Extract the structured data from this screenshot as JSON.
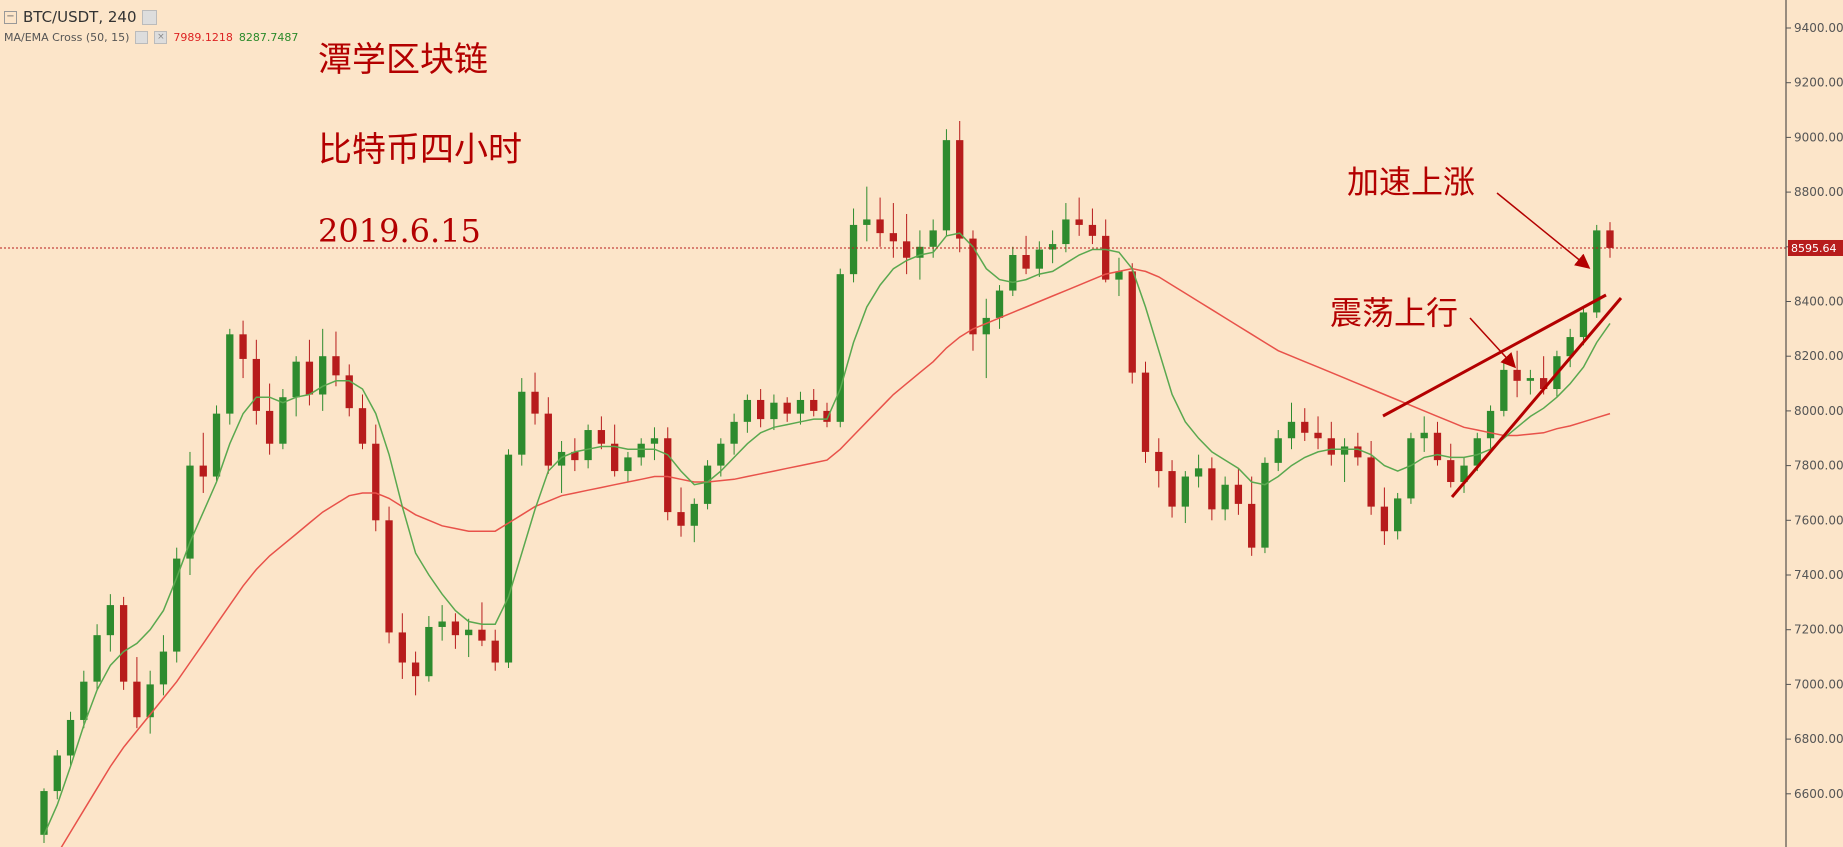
{
  "header": {
    "symbol": "BTC/USDT, 240",
    "indicator_name": "MA/EMA Cross (50, 15)",
    "indicator_value_1": "7989.1218",
    "indicator_value_2": "8287.7487"
  },
  "annotations": {
    "brand": "潭学区块链",
    "subtitle": "比特币四小时",
    "date": "2019.6.15",
    "label_accel": "加速上涨",
    "label_oscillate": "震荡上行"
  },
  "price_tag": "8595.64",
  "colors": {
    "background": "#fce5c9",
    "up": "#2e8b2e",
    "down": "#b71c1c",
    "ma_fast": "#5aa84f",
    "ma_slow": "#e8524a",
    "annotation": "#b30000"
  },
  "chart_data": {
    "type": "candlestick",
    "y_axis": {
      "ylim": [
        6400,
        9500
      ],
      "ticks": [
        "9400.00",
        "9200.00",
        "9000.00",
        "8800.00",
        "8600.00",
        "8400.00",
        "8200.00",
        "8000.00",
        "7800.00",
        "7600.00",
        "7400.00",
        "7200.00",
        "7000.00",
        "6800.00",
        "6600.00"
      ]
    },
    "last_price": 8595.64,
    "candles": [
      [
        6450,
        6620,
        6420,
        6610
      ],
      [
        6610,
        6760,
        6580,
        6740
      ],
      [
        6740,
        6900,
        6700,
        6870
      ],
      [
        6870,
        7050,
        6840,
        7010
      ],
      [
        7010,
        7220,
        6980,
        7180
      ],
      [
        7180,
        7330,
        7120,
        7290
      ],
      [
        7290,
        7320,
        6980,
        7010
      ],
      [
        7010,
        7100,
        6840,
        6880
      ],
      [
        6880,
        7050,
        6820,
        7000
      ],
      [
        7000,
        7180,
        6960,
        7120
      ],
      [
        7120,
        7500,
        7080,
        7460
      ],
      [
        7460,
        7850,
        7400,
        7800
      ],
      [
        7800,
        7920,
        7700,
        7760
      ],
      [
        7760,
        8020,
        7740,
        7990
      ],
      [
        7990,
        8300,
        7950,
        8280
      ],
      [
        8280,
        8330,
        8120,
        8190
      ],
      [
        8190,
        8260,
        7950,
        8000
      ],
      [
        8000,
        8100,
        7840,
        7880
      ],
      [
        7880,
        8080,
        7860,
        8050
      ],
      [
        8050,
        8200,
        7980,
        8180
      ],
      [
        8180,
        8260,
        8020,
        8060
      ],
      [
        8060,
        8300,
        8000,
        8200
      ],
      [
        8200,
        8290,
        8090,
        8130
      ],
      [
        8130,
        8170,
        7980,
        8010
      ],
      [
        8010,
        8060,
        7860,
        7880
      ],
      [
        7880,
        7950,
        7560,
        7600
      ],
      [
        7600,
        7650,
        7150,
        7190
      ],
      [
        7190,
        7260,
        7020,
        7080
      ],
      [
        7080,
        7120,
        6960,
        7030
      ],
      [
        7030,
        7250,
        7010,
        7210
      ],
      [
        7210,
        7290,
        7160,
        7230
      ],
      [
        7230,
        7260,
        7130,
        7180
      ],
      [
        7180,
        7240,
        7100,
        7200
      ],
      [
        7200,
        7300,
        7140,
        7160
      ],
      [
        7160,
        7200,
        7050,
        7080
      ],
      [
        7080,
        7860,
        7060,
        7840
      ],
      [
        7840,
        8120,
        7800,
        8070
      ],
      [
        8070,
        8140,
        7950,
        7990
      ],
      [
        7990,
        8050,
        7770,
        7800
      ],
      [
        7800,
        7890,
        7700,
        7850
      ],
      [
        7850,
        7900,
        7780,
        7820
      ],
      [
        7820,
        7950,
        7790,
        7930
      ],
      [
        7930,
        7980,
        7860,
        7880
      ],
      [
        7880,
        7950,
        7760,
        7780
      ],
      [
        7780,
        7850,
        7740,
        7830
      ],
      [
        7830,
        7900,
        7800,
        7880
      ],
      [
        7880,
        7940,
        7820,
        7900
      ],
      [
        7900,
        7940,
        7600,
        7630
      ],
      [
        7630,
        7720,
        7540,
        7580
      ],
      [
        7580,
        7680,
        7520,
        7660
      ],
      [
        7660,
        7820,
        7640,
        7800
      ],
      [
        7800,
        7900,
        7760,
        7880
      ],
      [
        7880,
        7990,
        7840,
        7960
      ],
      [
        7960,
        8060,
        7920,
        8040
      ],
      [
        8040,
        8080,
        7940,
        7970
      ],
      [
        7970,
        8060,
        7930,
        8030
      ],
      [
        8030,
        8050,
        7960,
        7990
      ],
      [
        7990,
        8070,
        7950,
        8040
      ],
      [
        8040,
        8080,
        7980,
        8000
      ],
      [
        8000,
        8030,
        7940,
        7960
      ],
      [
        7960,
        8520,
        7940,
        8500
      ],
      [
        8500,
        8740,
        8470,
        8680
      ],
      [
        8680,
        8820,
        8620,
        8700
      ],
      [
        8700,
        8780,
        8600,
        8650
      ],
      [
        8650,
        8760,
        8560,
        8620
      ],
      [
        8620,
        8720,
        8500,
        8560
      ],
      [
        8560,
        8660,
        8480,
        8600
      ],
      [
        8600,
        8700,
        8560,
        8660
      ],
      [
        8660,
        9030,
        8640,
        8990
      ],
      [
        8990,
        9060,
        8580,
        8630
      ],
      [
        8630,
        8660,
        8220,
        8280
      ],
      [
        8280,
        8410,
        8120,
        8340
      ],
      [
        8340,
        8460,
        8300,
        8440
      ],
      [
        8440,
        8600,
        8420,
        8570
      ],
      [
        8570,
        8640,
        8500,
        8520
      ],
      [
        8520,
        8620,
        8490,
        8590
      ],
      [
        8590,
        8660,
        8540,
        8610
      ],
      [
        8610,
        8760,
        8580,
        8700
      ],
      [
        8700,
        8780,
        8640,
        8680
      ],
      [
        8680,
        8740,
        8610,
        8640
      ],
      [
        8640,
        8700,
        8470,
        8480
      ],
      [
        8480,
        8560,
        8420,
        8510
      ],
      [
        8510,
        8540,
        8100,
        8140
      ],
      [
        8140,
        8180,
        7810,
        7850
      ],
      [
        7850,
        7900,
        7720,
        7780
      ],
      [
        7780,
        7820,
        7610,
        7650
      ],
      [
        7650,
        7780,
        7590,
        7760
      ],
      [
        7760,
        7840,
        7720,
        7790
      ],
      [
        7790,
        7830,
        7600,
        7640
      ],
      [
        7640,
        7760,
        7600,
        7730
      ],
      [
        7730,
        7790,
        7620,
        7660
      ],
      [
        7660,
        7760,
        7470,
        7500
      ],
      [
        7500,
        7830,
        7480,
        7810
      ],
      [
        7810,
        7930,
        7780,
        7900
      ],
      [
        7900,
        8030,
        7860,
        7960
      ],
      [
        7960,
        8010,
        7890,
        7920
      ],
      [
        7920,
        7980,
        7860,
        7900
      ],
      [
        7900,
        7960,
        7800,
        7840
      ],
      [
        7840,
        7900,
        7740,
        7870
      ],
      [
        7870,
        7920,
        7800,
        7830
      ],
      [
        7830,
        7890,
        7620,
        7650
      ],
      [
        7650,
        7720,
        7510,
        7560
      ],
      [
        7560,
        7700,
        7530,
        7680
      ],
      [
        7680,
        7920,
        7660,
        7900
      ],
      [
        7900,
        7980,
        7850,
        7920
      ],
      [
        7920,
        7960,
        7800,
        7820
      ],
      [
        7820,
        7880,
        7720,
        7740
      ],
      [
        7740,
        7830,
        7700,
        7800
      ],
      [
        7800,
        7920,
        7780,
        7900
      ],
      [
        7900,
        8020,
        7860,
        8000
      ],
      [
        8000,
        8180,
        7980,
        8150
      ],
      [
        8150,
        8220,
        8050,
        8110
      ],
      [
        8110,
        8150,
        8060,
        8120
      ],
      [
        8120,
        8200,
        8060,
        8080
      ],
      [
        8080,
        8220,
        8050,
        8200
      ],
      [
        8200,
        8300,
        8160,
        8270
      ],
      [
        8270,
        8380,
        8240,
        8360
      ],
      [
        8360,
        8680,
        8340,
        8660
      ],
      [
        8660,
        8690,
        8560,
        8596
      ]
    ],
    "ma_fast_values": [
      6450,
      6560,
      6700,
      6850,
      6980,
      7070,
      7120,
      7150,
      7200,
      7270,
      7390,
      7520,
      7630,
      7740,
      7880,
      7990,
      8050,
      8050,
      8030,
      8050,
      8060,
      8090,
      8110,
      8110,
      8080,
      7990,
      7840,
      7650,
      7480,
      7400,
      7330,
      7270,
      7230,
      7220,
      7220,
      7320,
      7480,
      7640,
      7780,
      7830,
      7850,
      7860,
      7870,
      7870,
      7860,
      7860,
      7860,
      7840,
      7780,
      7730,
      7740,
      7780,
      7830,
      7880,
      7920,
      7940,
      7950,
      7960,
      7970,
      7970,
      8080,
      8250,
      8380,
      8460,
      8520,
      8550,
      8570,
      8580,
      8640,
      8650,
      8600,
      8520,
      8480,
      8470,
      8480,
      8500,
      8510,
      8540,
      8570,
      8590,
      8590,
      8580,
      8520,
      8380,
      8220,
      8060,
      7960,
      7900,
      7850,
      7820,
      7790,
      7740,
      7730,
      7760,
      7800,
      7830,
      7850,
      7860,
      7860,
      7860,
      7840,
      7800,
      7780,
      7800,
      7830,
      7840,
      7830,
      7830,
      7840,
      7860,
      7900,
      7940,
      7980,
      8010,
      8050,
      8100,
      8160,
      8250,
      8320
    ],
    "ma_slow_values": [
      6300,
      6380,
      6460,
      6540,
      6620,
      6700,
      6770,
      6830,
      6890,
      6950,
      7010,
      7080,
      7150,
      7220,
      7290,
      7360,
      7420,
      7470,
      7510,
      7550,
      7590,
      7630,
      7660,
      7690,
      7700,
      7700,
      7680,
      7650,
      7620,
      7600,
      7580,
      7570,
      7560,
      7560,
      7560,
      7590,
      7620,
      7650,
      7670,
      7690,
      7700,
      7710,
      7720,
      7730,
      7740,
      7750,
      7760,
      7760,
      7750,
      7740,
      7740,
      7745,
      7750,
      7760,
      7770,
      7780,
      7790,
      7800,
      7810,
      7820,
      7860,
      7910,
      7960,
      8010,
      8060,
      8100,
      8140,
      8180,
      8230,
      8270,
      8300,
      8320,
      8340,
      8360,
      8380,
      8400,
      8420,
      8440,
      8460,
      8480,
      8500,
      8510,
      8520,
      8510,
      8490,
      8460,
      8430,
      8400,
      8370,
      8340,
      8310,
      8280,
      8250,
      8220,
      8200,
      8180,
      8160,
      8140,
      8120,
      8100,
      8080,
      8060,
      8040,
      8020,
      8000,
      7980,
      7960,
      7940,
      7930,
      7920,
      7910,
      7910,
      7915,
      7920,
      7935,
      7945,
      7960,
      7975,
      7990
    ]
  }
}
